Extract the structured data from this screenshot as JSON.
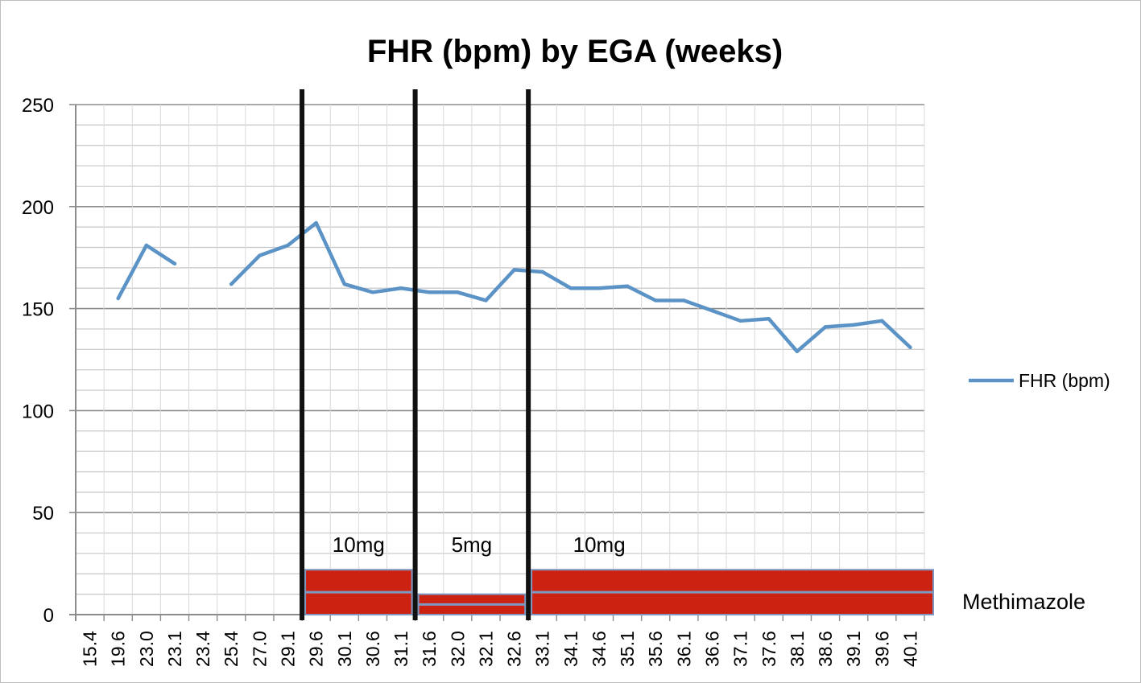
{
  "chart_data": {
    "type": "line",
    "title": "FHR (bpm) by EGA (weeks)",
    "xlabel": "",
    "ylabel": "",
    "ylim": [
      0,
      250
    ],
    "y_major_ticks": [
      0,
      50,
      100,
      150,
      200,
      250
    ],
    "y_minor_step": 10,
    "grid": true,
    "legend_position": "right",
    "categories": [
      "15.4",
      "19.6",
      "23.0",
      "23.1",
      "23.4",
      "25.4",
      "27.0",
      "29.1",
      "29.6",
      "30.1",
      "30.6",
      "31.1",
      "31.6",
      "32.0",
      "32.1",
      "32.6",
      "33.1",
      "34.1",
      "34.6",
      "35.1",
      "35.6",
      "36.1",
      "36.6",
      "37.1",
      "37.6",
      "38.1",
      "38.6",
      "39.1",
      "39.6",
      "40.1"
    ],
    "series": [
      {
        "name": "FHR (bpm)",
        "color": "#5b93c6",
        "values": [
          null,
          155,
          181,
          172,
          null,
          162,
          176,
          181,
          192,
          162,
          158,
          160,
          158,
          158,
          154,
          169,
          168,
          160,
          160,
          161,
          154,
          154,
          149,
          144,
          145,
          129,
          141,
          142,
          144,
          131
        ]
      }
    ],
    "treatment": {
      "label": "Methimazole",
      "color": "#cc2211",
      "line_color": "#7f98c2",
      "segments": [
        {
          "label": "10mg",
          "dose_value": 22,
          "start_between": [
            "29.1",
            "29.6"
          ],
          "end_between": [
            "31.1",
            "31.6"
          ]
        },
        {
          "label": "5mg",
          "dose_value": 10,
          "start_between": [
            "31.1",
            "31.6"
          ],
          "end_between": [
            "32.6",
            "33.1"
          ]
        },
        {
          "label": "10mg",
          "dose_value": 22,
          "start_between": [
            "32.6",
            "33.1"
          ],
          "end_after": "40.1"
        }
      ]
    },
    "vertical_markers_between": [
      [
        "29.1",
        "29.6"
      ],
      [
        "31.1",
        "31.6"
      ],
      [
        "32.6",
        "33.1"
      ]
    ]
  }
}
